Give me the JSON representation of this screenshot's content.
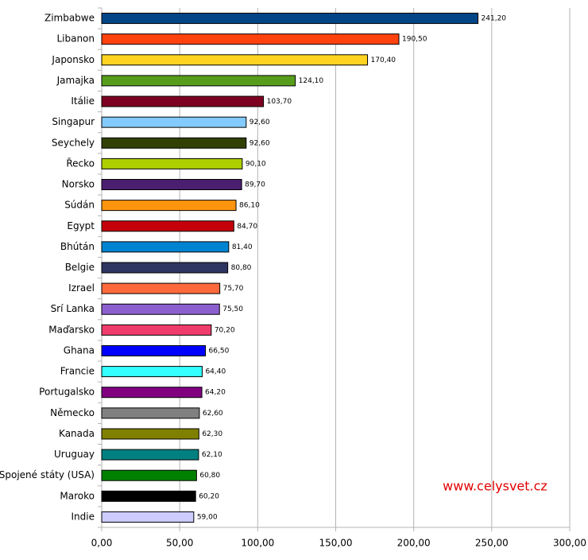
{
  "chart_data": {
    "type": "hbar",
    "categories": [
      "Zimbabwe",
      "Libanon",
      "Japonsko",
      "Jamajka",
      "Itálie",
      "Singapur",
      "Seychely",
      "Řecko",
      "Norsko",
      "Súdán",
      "Egypt",
      "Bhútán",
      "Belgie",
      "Izrael",
      "Srí Lanka",
      "Maďarsko",
      "Ghana",
      "Francie",
      "Portugalsko",
      "Německo",
      "Kanada",
      "Uruguay",
      "Spojené státy (USA)",
      "Maroko",
      "Indie"
    ],
    "values": [
      241.2,
      190.5,
      170.4,
      124.1,
      103.7,
      92.6,
      92.6,
      90.1,
      89.7,
      86.1,
      84.7,
      81.4,
      80.8,
      75.7,
      75.5,
      70.2,
      66.5,
      64.4,
      64.2,
      62.6,
      62.3,
      62.1,
      60.8,
      60.2,
      59.0
    ],
    "value_labels": [
      "241,20",
      "190,50",
      "170,40",
      "124,10",
      "103,70",
      "92,60",
      "92,60",
      "90,10",
      "89,70",
      "86,10",
      "84,70",
      "81,40",
      "80,80",
      "75,70",
      "75,50",
      "70,20",
      "66,50",
      "64,40",
      "64,20",
      "62,60",
      "62,30",
      "62,10",
      "60,80",
      "60,20",
      "59,00"
    ],
    "colors": [
      "#004586",
      "#ff420e",
      "#ffd320",
      "#579d1c",
      "#7e0021",
      "#83caff",
      "#314004",
      "#aecf00",
      "#4b1f6f",
      "#ff950e",
      "#c5000b",
      "#0084d1",
      "#2f3561",
      "#ff6a3d",
      "#8c5fcf",
      "#f03c6c",
      "#0000ff",
      "#33ffff",
      "#800080",
      "#808080",
      "#808000",
      "#008080",
      "#008000",
      "#000000",
      "#ccccff"
    ],
    "xlim": [
      0,
      300
    ],
    "xticks": [
      {
        "value": 0,
        "label": "0,00"
      },
      {
        "value": 50,
        "label": "50,00"
      },
      {
        "value": 100,
        "label": "100,00"
      },
      {
        "value": 150,
        "label": "150,00"
      },
      {
        "value": 200,
        "label": "200,00"
      },
      {
        "value": 250,
        "label": "250,00"
      },
      {
        "value": 300,
        "label": "300,00"
      }
    ],
    "grid": true,
    "annotation": "www.celysvet.cz"
  }
}
